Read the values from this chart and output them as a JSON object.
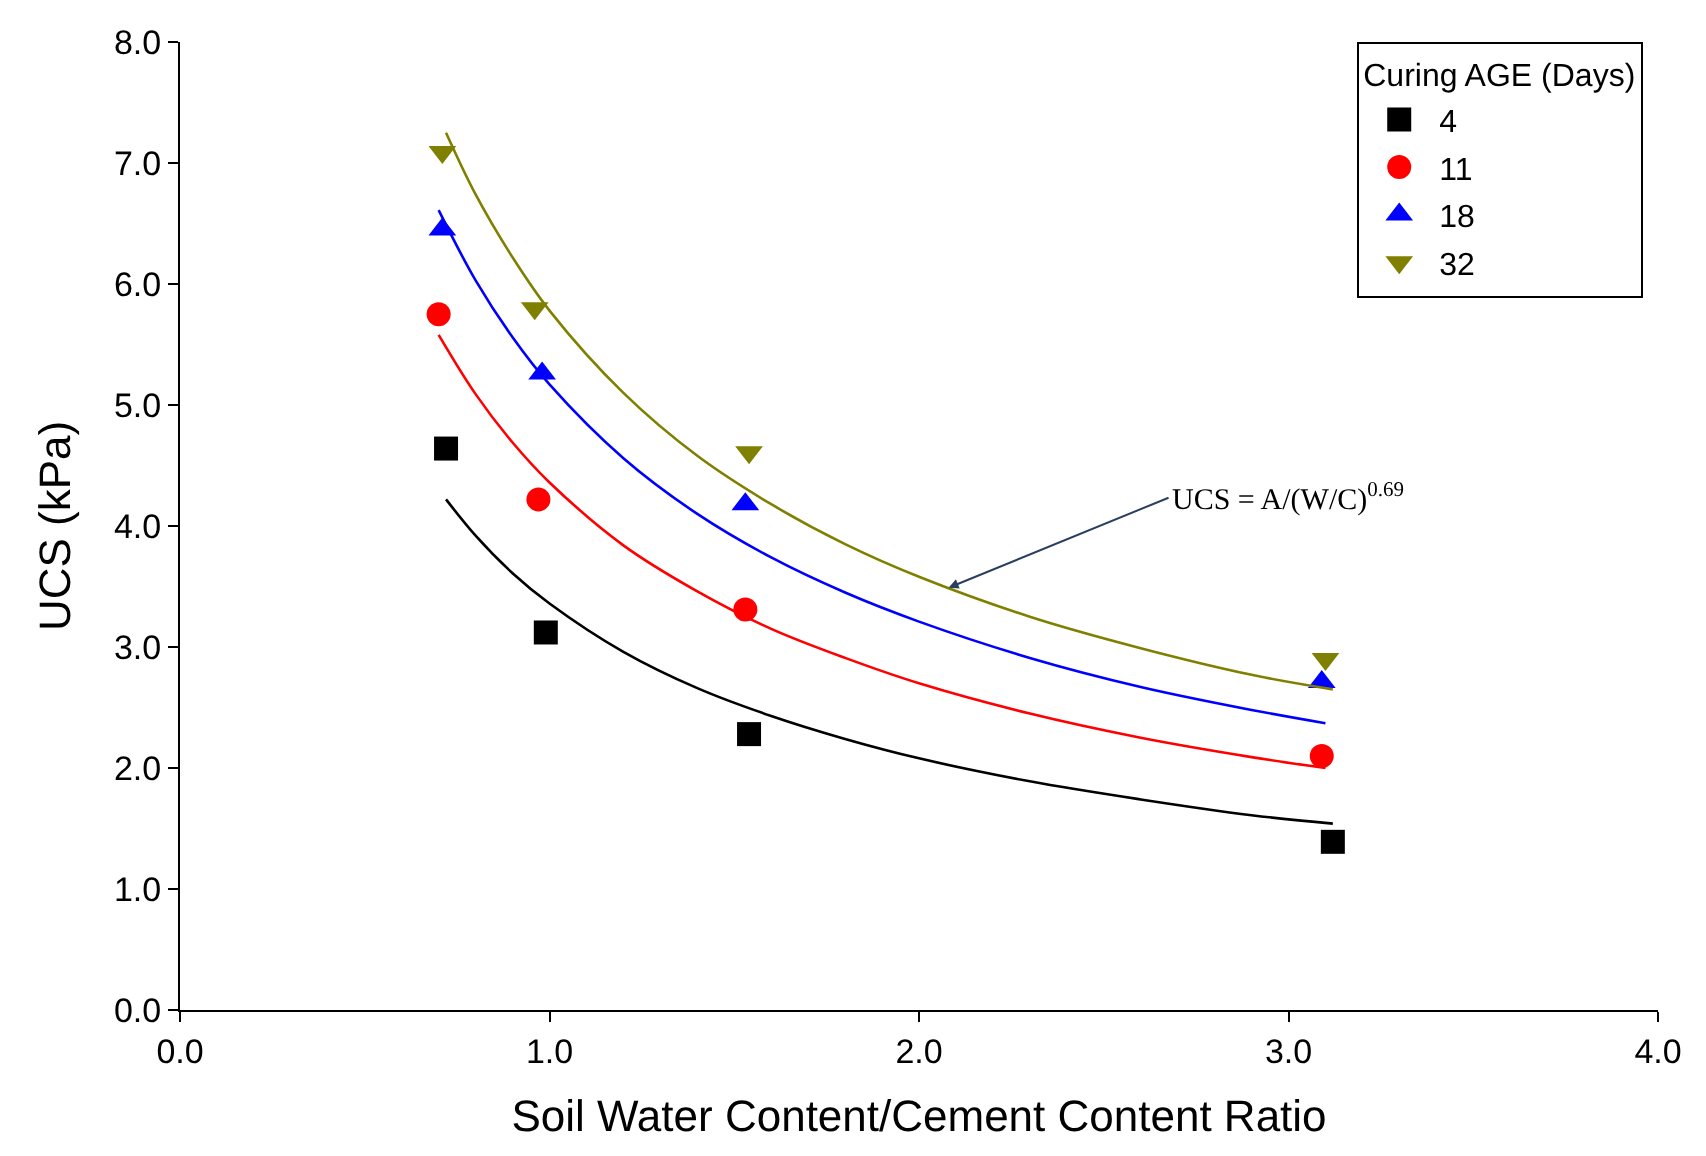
{
  "chart_data": {
    "type": "scatter",
    "xlabel": "Soil Water Content/Cement Content Ratio",
    "ylabel": "UCS (kPa)",
    "legend_title": "Curing AGE (Days)",
    "legend": "top right",
    "xlim": [
      0,
      4
    ],
    "ylim": [
      0,
      8
    ],
    "xticks": [
      {
        "value": 0,
        "label": "0.0"
      },
      {
        "value": 1,
        "label": "1.0"
      },
      {
        "value": 2,
        "label": "2.0"
      },
      {
        "value": 3,
        "label": "3.0"
      },
      {
        "value": 4,
        "label": "4.0"
      }
    ],
    "yticks": [
      {
        "value": 0,
        "label": "0.0"
      },
      {
        "value": 1,
        "label": "1.0"
      },
      {
        "value": 2,
        "label": "2.0"
      },
      {
        "value": 3,
        "label": "3.0"
      },
      {
        "value": 4,
        "label": "4.0"
      },
      {
        "value": 5,
        "label": "5.0"
      },
      {
        "value": 6,
        "label": "6.0"
      },
      {
        "value": 7,
        "label": "7.0"
      },
      {
        "value": 8,
        "label": "8.0"
      }
    ],
    "series": [
      {
        "name": "4",
        "marker": "square",
        "color": "#000000",
        "x": [
          0.72,
          0.99,
          1.54,
          3.12
        ],
        "values": [
          4.64,
          3.12,
          2.28,
          1.39
        ]
      },
      {
        "name": "11",
        "marker": "circle",
        "color": "#ff0000",
        "x": [
          0.7,
          0.97,
          1.53,
          3.09
        ],
        "values": [
          5.75,
          4.22,
          3.31,
          2.1
        ]
      },
      {
        "name": "18",
        "marker": "triangle",
        "color": "#0000ff",
        "x": [
          0.71,
          0.98,
          1.53,
          3.09
        ],
        "values": [
          6.45,
          5.26,
          4.18,
          2.71
        ]
      },
      {
        "name": "32",
        "marker": "triangle-down",
        "color": "#808000",
        "x": [
          0.71,
          0.96,
          1.54,
          3.1
        ],
        "values": [
          7.09,
          5.8,
          4.61,
          2.9
        ]
      },
      {
        "type": "line",
        "marker": "none",
        "color": "#000000",
        "x": [
          0.72,
          0.8,
          0.9,
          1.0,
          1.2,
          1.4,
          1.6,
          1.8,
          2.0,
          2.3,
          2.6,
          2.9,
          3.12
        ],
        "values": [
          4.22,
          3.92,
          3.61,
          3.36,
          2.96,
          2.66,
          2.43,
          2.24,
          2.08,
          1.89,
          1.74,
          1.61,
          1.54
        ]
      },
      {
        "type": "line",
        "marker": "none",
        "color": "#ff0000",
        "x": [
          0.7,
          0.8,
          0.9,
          1.0,
          1.2,
          1.4,
          1.6,
          1.8,
          2.0,
          2.3,
          2.6,
          2.9,
          3.1
        ],
        "values": [
          5.58,
          5.09,
          4.69,
          4.36,
          3.84,
          3.46,
          3.15,
          2.91,
          2.7,
          2.45,
          2.25,
          2.09,
          2.0
        ]
      },
      {
        "type": "line",
        "marker": "none",
        "color": "#0000ff",
        "x": [
          0.7,
          0.8,
          0.9,
          1.0,
          1.2,
          1.4,
          1.6,
          1.8,
          2.0,
          2.3,
          2.6,
          2.9,
          3.1
        ],
        "values": [
          6.61,
          6.03,
          5.56,
          5.17,
          4.56,
          4.1,
          3.74,
          3.45,
          3.21,
          2.91,
          2.67,
          2.48,
          2.37
        ]
      },
      {
        "type": "line",
        "marker": "none",
        "color": "#808000",
        "x": [
          0.72,
          0.8,
          0.9,
          1.0,
          1.2,
          1.4,
          1.6,
          1.8,
          2.0,
          2.3,
          2.6,
          2.9,
          3.12
        ],
        "values": [
          7.25,
          6.74,
          6.22,
          5.78,
          5.1,
          4.58,
          4.18,
          3.85,
          3.58,
          3.25,
          2.99,
          2.77,
          2.65
        ]
      }
    ],
    "annotations": [
      {
        "text": "UCS = A/(W/C)$^{0.69}$",
        "x": 2.08,
        "y": 3.49
      }
    ]
  }
}
